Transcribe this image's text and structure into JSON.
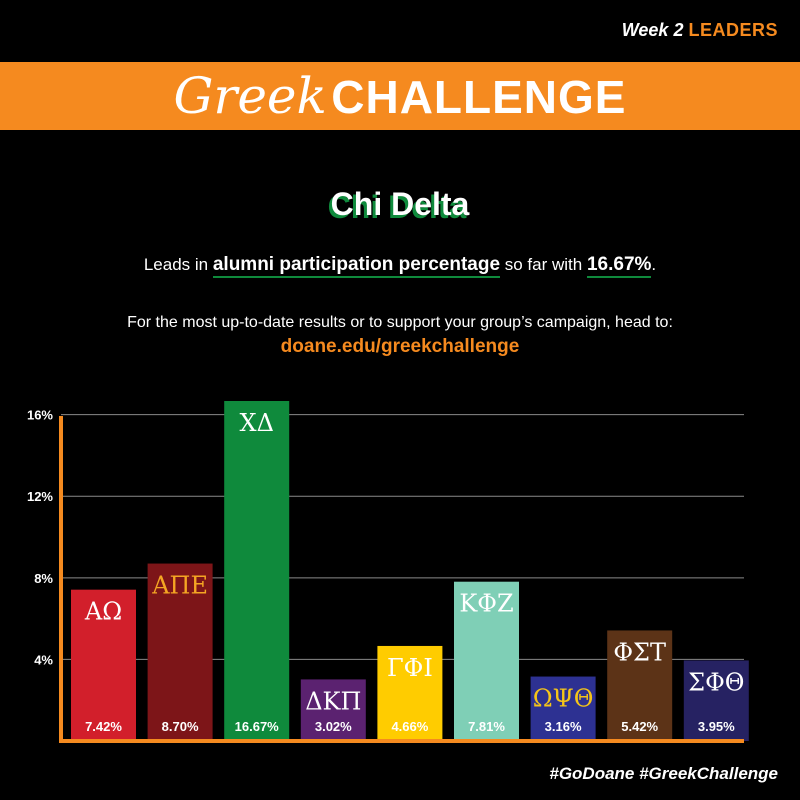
{
  "header": {
    "week_label": "Week 2",
    "leaders_label": "LEADERS",
    "title_script": "Greek",
    "title_bold": "CHALLENGE"
  },
  "headline": {
    "leader": "Chi Delta",
    "leads_prefix": "Leads in",
    "leads_metric": "alumni participation percentage",
    "leads_middle": "so far with",
    "leads_value": "16.67%",
    "leads_suffix": ".",
    "info": "For the most up-to-date results or to support your group’s campaign, head to:",
    "url": "doane.edu/greekchallenge"
  },
  "footer": {
    "hashtags": "#GoDoane #GreekChallenge"
  },
  "colors": {
    "accent": "#f58a1f",
    "leader_green": "#0f8a3c",
    "background": "#000000"
  },
  "chart_data": {
    "type": "bar",
    "categories": [
      "ΑΩ",
      "ΑΠΕ",
      "ΧΔ",
      "ΔΚΠ",
      "ΓΦΙ",
      "ΚΦΖ",
      "ΩΨΘ",
      "ΦΣΤ",
      "ΣΦΘ"
    ],
    "values": [
      7.42,
      8.7,
      16.67,
      3.02,
      4.66,
      7.81,
      3.16,
      5.42,
      3.95
    ],
    "data_labels": [
      "7.42%",
      "8.70%",
      "16.67%",
      "3.02%",
      "4.66%",
      "7.81%",
      "3.16%",
      "5.42%",
      "3.95%"
    ],
    "bar_colors": [
      "#d21f2b",
      "#7d1518",
      "#0f8a3c",
      "#5b2270",
      "#ffcc00",
      "#7fcfb6",
      "#2d3192",
      "#5c3317",
      "#262262"
    ],
    "label_colors": [
      "#ffffff",
      "#f5a623",
      "#ffffff",
      "#ffffff",
      "#ffffff",
      "#ffffff",
      "#f5c518",
      "#ffffff",
      "#ffffff"
    ],
    "y_ticks": [
      "4%",
      "8%",
      "12%",
      "16%"
    ],
    "y_tick_values": [
      4,
      8,
      12,
      16
    ],
    "ylim": [
      0,
      16.67
    ],
    "grid": true,
    "axis_color": "#f58a1f"
  }
}
